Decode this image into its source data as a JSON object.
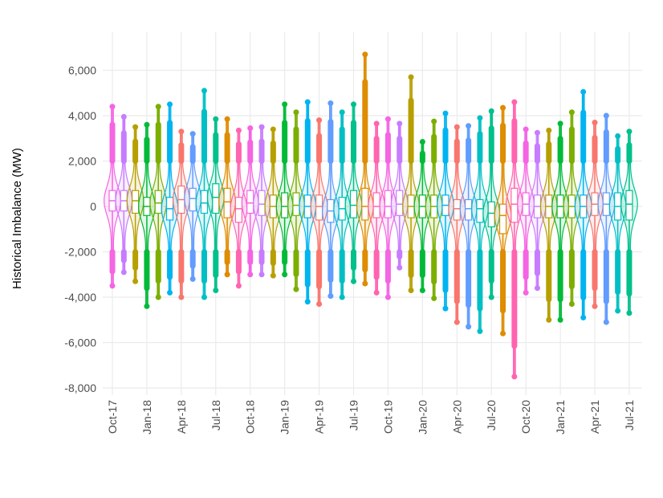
{
  "chart_data": {
    "type": "violin",
    "title": "",
    "xlabel": "",
    "ylabel": "Historical Imbalance (MW)",
    "ylim": [
      -8000,
      7000
    ],
    "yticks": [
      -8000,
      -6000,
      -4000,
      -2000,
      0,
      2000,
      4000,
      6000
    ],
    "ytick_labels": [
      "-8,000",
      "-6,000",
      "-4,000",
      "-2,000",
      "0",
      "2,000",
      "4,000",
      "6,000"
    ],
    "xtick_labels": [
      "Oct-17",
      "Jan-18",
      "Apr-18",
      "Jul-18",
      "Oct-18",
      "Jan-19",
      "Apr-19",
      "Jul-19",
      "Oct-19",
      "Jan-20",
      "Apr-20",
      "Jul-20",
      "Oct-20",
      "Jan-21",
      "Apr-21",
      "Jul-21"
    ],
    "grid": true,
    "legend": "none",
    "color_by": "month",
    "month_colors": {
      "Jan": "#00BA38",
      "Feb": "#7CAE00",
      "Mar": "#00B4F0",
      "Apr": "#F8766D",
      "May": "#619CFF",
      "Jun": "#00BFC4",
      "Jul": "#00C08B",
      "Aug": "#DE8C00",
      "Sep": "#FF64B0",
      "Oct": "#F564E3",
      "Nov": "#C77CFF",
      "Dec": "#B79F00"
    },
    "categories": [
      "Oct-17",
      "Nov-17",
      "Dec-17",
      "Jan-18",
      "Feb-18",
      "Mar-18",
      "Apr-18",
      "May-18",
      "Jun-18",
      "Jul-18",
      "Aug-18",
      "Sep-18",
      "Oct-18",
      "Nov-18",
      "Dec-18",
      "Jan-19",
      "Feb-19",
      "Mar-19",
      "Apr-19",
      "May-19",
      "Jun-19",
      "Jul-19",
      "Aug-19",
      "Sep-19",
      "Oct-19",
      "Nov-19",
      "Dec-19",
      "Jan-20",
      "Feb-20",
      "Mar-20",
      "Apr-20",
      "May-20",
      "Jun-20",
      "Jul-20",
      "Aug-20",
      "Sep-20",
      "Oct-20",
      "Nov-20",
      "Dec-20",
      "Jan-21",
      "Feb-21",
      "Mar-21",
      "Apr-21",
      "May-21",
      "Jun-21",
      "Jul-21"
    ],
    "max": [
      4400,
      3950,
      3500,
      3600,
      4400,
      4500,
      3300,
      3200,
      5100,
      3850,
      3850,
      3350,
      3450,
      3500,
      3400,
      4500,
      4150,
      4600,
      3800,
      4550,
      4150,
      4500,
      6700,
      3650,
      3850,
      3650,
      5700,
      2850,
      3750,
      4100,
      3500,
      3550,
      3900,
      4200,
      4350,
      4600,
      3400,
      3250,
      3350,
      3650,
      4150,
      5050,
      3700,
      4000,
      3100,
      3300
    ],
    "min": [
      -3500,
      -2900,
      -3300,
      -4400,
      -4000,
      -3800,
      -4000,
      -3200,
      -4000,
      -3700,
      -3000,
      -3500,
      -3000,
      -3000,
      -3050,
      -3000,
      -3650,
      -4200,
      -4300,
      -3950,
      -4000,
      -3300,
      -3400,
      -3800,
      -4000,
      -2700,
      -3700,
      -3700,
      -4050,
      -4500,
      -5100,
      -5300,
      -5500,
      -4000,
      -5600,
      -7500,
      -3800,
      -3600,
      -5000,
      -5000,
      -4300,
      -4900,
      -4400,
      -5100,
      -4600,
      -4700
    ],
    "median": [
      250,
      250,
      250,
      0,
      150,
      -100,
      300,
      350,
      150,
      400,
      200,
      -100,
      150,
      100,
      0,
      0,
      50,
      0,
      0,
      -200,
      -100,
      50,
      0,
      0,
      0,
      100,
      0,
      0,
      0,
      50,
      -100,
      -100,
      -100,
      -300,
      -400,
      100,
      100,
      0,
      0,
      0,
      0,
      0,
      100,
      100,
      0,
      100
    ],
    "q1": [
      -200,
      -200,
      -300,
      -400,
      -300,
      -600,
      -300,
      -200,
      -300,
      -300,
      -500,
      -700,
      -300,
      -400,
      -500,
      -500,
      -400,
      -500,
      -600,
      -700,
      -600,
      -500,
      -600,
      -500,
      -500,
      -400,
      -500,
      -500,
      -500,
      -400,
      -600,
      -600,
      -700,
      -900,
      -1200,
      -700,
      -400,
      -500,
      -500,
      -500,
      -500,
      -500,
      -400,
      -400,
      -600,
      -600
    ],
    "q3": [
      700,
      700,
      700,
      400,
      700,
      400,
      900,
      800,
      700,
      1000,
      800,
      400,
      700,
      700,
      500,
      600,
      600,
      500,
      500,
      300,
      400,
      700,
      800,
      600,
      700,
      700,
      500,
      500,
      500,
      500,
      300,
      300,
      300,
      200,
      100,
      800,
      600,
      500,
      500,
      500,
      500,
      500,
      600,
      600,
      600,
      700
    ]
  }
}
